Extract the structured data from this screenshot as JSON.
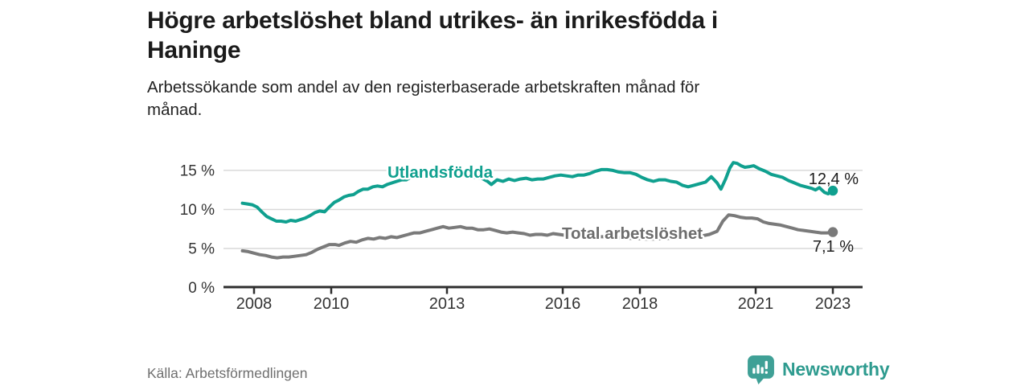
{
  "header": {
    "title_lines": [
      "Högre arbetslöshet bland utrikes- än inrikesfödda i",
      "Haninge"
    ],
    "subtitle_lines": [
      "Arbetssökande som andel av den registerbaserade arbetskraften månad för",
      "månad."
    ]
  },
  "footer": {
    "source": "Källa: Arbetsförmedlingen",
    "brand": "Newsworthy",
    "logo_icon": "speech-bubble-bar-chart-icon",
    "brand_color": "#2e9b8f",
    "logo_icon_color": "#3fa096"
  },
  "chart_data": {
    "type": "line",
    "title": "Högre arbetslöshet bland utrikes- än inrikesfödda i Haninge",
    "subtitle": "Arbetssökande som andel av den registerbaserade arbetskraften månad för månad.",
    "xlabel": "",
    "ylabel": "",
    "x_unit": "decimal year, monthly observations",
    "ylim": [
      0,
      17.5
    ],
    "xlim": [
      2007.5,
      2023.7
    ],
    "grid": "horizontal",
    "legend": "inline-series-labels",
    "axis_color": "#2e2e2e",
    "gridline_color": "#d9d9d9",
    "tick_label_color": "#333333",
    "y_ticks": [
      {
        "value": 15,
        "label": "15 %"
      },
      {
        "value": 10,
        "label": "10 %"
      },
      {
        "value": 5,
        "label": "5 %"
      },
      {
        "value": 0,
        "label": "0 %"
      }
    ],
    "x_ticks": [
      {
        "value": 2008,
        "label": "2008"
      },
      {
        "value": 2010,
        "label": "2010"
      },
      {
        "value": 2013,
        "label": "2013"
      },
      {
        "value": 2016,
        "label": "2016"
      },
      {
        "value": 2018,
        "label": "2018"
      },
      {
        "value": 2021,
        "label": "2021"
      },
      {
        "value": 2023,
        "label": "2023"
      }
    ],
    "series": [
      {
        "id": "utlandsfodda",
        "name": "Utlandsfödda",
        "color": "#10a08f",
        "end_label": "12,4 %",
        "end_value": 12.4,
        "points": [
          [
            2007.7,
            10.8
          ],
          [
            2007.83,
            10.7
          ],
          [
            2007.95,
            10.6
          ],
          [
            2008.08,
            10.3
          ],
          [
            2008.2,
            9.7
          ],
          [
            2008.33,
            9.1
          ],
          [
            2008.45,
            8.8
          ],
          [
            2008.58,
            8.5
          ],
          [
            2008.7,
            8.5
          ],
          [
            2008.83,
            8.4
          ],
          [
            2008.95,
            8.6
          ],
          [
            2009.08,
            8.5
          ],
          [
            2009.2,
            8.7
          ],
          [
            2009.33,
            8.9
          ],
          [
            2009.45,
            9.2
          ],
          [
            2009.58,
            9.6
          ],
          [
            2009.7,
            9.8
          ],
          [
            2009.83,
            9.7
          ],
          [
            2009.95,
            10.3
          ],
          [
            2010.08,
            10.9
          ],
          [
            2010.2,
            11.2
          ],
          [
            2010.33,
            11.6
          ],
          [
            2010.45,
            11.8
          ],
          [
            2010.58,
            11.9
          ],
          [
            2010.7,
            12.3
          ],
          [
            2010.83,
            12.6
          ],
          [
            2010.95,
            12.6
          ],
          [
            2011.08,
            12.9
          ],
          [
            2011.2,
            13.0
          ],
          [
            2011.33,
            12.9
          ],
          [
            2011.45,
            13.2
          ],
          [
            2011.58,
            13.4
          ],
          [
            2011.7,
            13.6
          ],
          [
            2011.83,
            13.8
          ],
          [
            2011.95,
            13.8
          ],
          [
            2012.08,
            14.2
          ],
          [
            2012.2,
            14.3
          ],
          [
            2012.33,
            14.3
          ],
          [
            2012.45,
            14.5
          ],
          [
            2012.58,
            14.4
          ],
          [
            2012.7,
            14.6
          ],
          [
            2012.83,
            14.5
          ],
          [
            2012.95,
            14.6
          ],
          [
            2013.1,
            14.4
          ],
          [
            2013.3,
            14.3
          ],
          [
            2013.5,
            14.3
          ],
          [
            2013.7,
            14.1
          ],
          [
            2013.9,
            14.0
          ],
          [
            2014.05,
            13.6
          ],
          [
            2014.15,
            13.2
          ],
          [
            2014.3,
            13.8
          ],
          [
            2014.45,
            13.6
          ],
          [
            2014.6,
            13.9
          ],
          [
            2014.75,
            13.7
          ],
          [
            2014.9,
            13.9
          ],
          [
            2015.05,
            14.0
          ],
          [
            2015.2,
            13.8
          ],
          [
            2015.35,
            13.9
          ],
          [
            2015.5,
            13.9
          ],
          [
            2015.65,
            14.1
          ],
          [
            2015.8,
            14.3
          ],
          [
            2015.95,
            14.4
          ],
          [
            2016.1,
            14.3
          ],
          [
            2016.25,
            14.2
          ],
          [
            2016.4,
            14.4
          ],
          [
            2016.55,
            14.4
          ],
          [
            2016.7,
            14.6
          ],
          [
            2016.85,
            14.9
          ],
          [
            2017.0,
            15.1
          ],
          [
            2017.15,
            15.1
          ],
          [
            2017.3,
            15.0
          ],
          [
            2017.45,
            14.8
          ],
          [
            2017.6,
            14.7
          ],
          [
            2017.75,
            14.7
          ],
          [
            2017.9,
            14.5
          ],
          [
            2018.05,
            14.1
          ],
          [
            2018.2,
            13.8
          ],
          [
            2018.35,
            13.6
          ],
          [
            2018.5,
            13.8
          ],
          [
            2018.65,
            13.8
          ],
          [
            2018.8,
            13.6
          ],
          [
            2018.95,
            13.5
          ],
          [
            2019.1,
            13.1
          ],
          [
            2019.25,
            12.9
          ],
          [
            2019.4,
            13.1
          ],
          [
            2019.55,
            13.3
          ],
          [
            2019.7,
            13.5
          ],
          [
            2019.85,
            14.2
          ],
          [
            2020.0,
            13.4
          ],
          [
            2020.1,
            12.6
          ],
          [
            2020.22,
            13.9
          ],
          [
            2020.33,
            15.3
          ],
          [
            2020.42,
            16.0
          ],
          [
            2020.52,
            15.9
          ],
          [
            2020.62,
            15.6
          ],
          [
            2020.72,
            15.4
          ],
          [
            2020.85,
            15.5
          ],
          [
            2020.95,
            15.6
          ],
          [
            2021.1,
            15.2
          ],
          [
            2021.25,
            14.9
          ],
          [
            2021.4,
            14.5
          ],
          [
            2021.55,
            14.3
          ],
          [
            2021.7,
            14.1
          ],
          [
            2021.85,
            13.7
          ],
          [
            2022.0,
            13.4
          ],
          [
            2022.15,
            13.1
          ],
          [
            2022.3,
            12.9
          ],
          [
            2022.45,
            12.7
          ],
          [
            2022.55,
            12.5
          ],
          [
            2022.65,
            12.8
          ],
          [
            2022.78,
            12.2
          ],
          [
            2022.88,
            12.0
          ],
          [
            2023.0,
            12.4
          ]
        ]
      },
      {
        "id": "total",
        "name": "Total arbetslöshet",
        "color": "#7a7a7a",
        "label_color": "#6d6d6d",
        "end_label": "7,1 %",
        "end_value": 7.1,
        "points": [
          [
            2007.7,
            4.7
          ],
          [
            2007.85,
            4.6
          ],
          [
            2008.0,
            4.4
          ],
          [
            2008.15,
            4.2
          ],
          [
            2008.3,
            4.1
          ],
          [
            2008.45,
            3.9
          ],
          [
            2008.6,
            3.8
          ],
          [
            2008.75,
            3.9
          ],
          [
            2008.9,
            3.9
          ],
          [
            2009.05,
            4.0
          ],
          [
            2009.2,
            4.1
          ],
          [
            2009.35,
            4.2
          ],
          [
            2009.5,
            4.5
          ],
          [
            2009.65,
            4.9
          ],
          [
            2009.8,
            5.2
          ],
          [
            2009.95,
            5.5
          ],
          [
            2010.1,
            5.5
          ],
          [
            2010.2,
            5.4
          ],
          [
            2010.35,
            5.7
          ],
          [
            2010.5,
            5.9
          ],
          [
            2010.65,
            5.8
          ],
          [
            2010.8,
            6.1
          ],
          [
            2010.95,
            6.3
          ],
          [
            2011.1,
            6.2
          ],
          [
            2011.25,
            6.4
          ],
          [
            2011.4,
            6.3
          ],
          [
            2011.55,
            6.5
          ],
          [
            2011.7,
            6.4
          ],
          [
            2011.85,
            6.6
          ],
          [
            2012.0,
            6.8
          ],
          [
            2012.15,
            7.0
          ],
          [
            2012.3,
            7.0
          ],
          [
            2012.45,
            7.2
          ],
          [
            2012.6,
            7.4
          ],
          [
            2012.75,
            7.6
          ],
          [
            2012.9,
            7.8
          ],
          [
            2013.05,
            7.6
          ],
          [
            2013.2,
            7.7
          ],
          [
            2013.35,
            7.8
          ],
          [
            2013.5,
            7.6
          ],
          [
            2013.65,
            7.6
          ],
          [
            2013.8,
            7.4
          ],
          [
            2013.95,
            7.4
          ],
          [
            2014.1,
            7.5
          ],
          [
            2014.25,
            7.3
          ],
          [
            2014.4,
            7.1
          ],
          [
            2014.55,
            7.0
          ],
          [
            2014.7,
            7.1
          ],
          [
            2014.85,
            7.0
          ],
          [
            2015.0,
            6.9
          ],
          [
            2015.15,
            6.7
          ],
          [
            2015.3,
            6.8
          ],
          [
            2015.45,
            6.8
          ],
          [
            2015.6,
            6.7
          ],
          [
            2015.75,
            6.9
          ],
          [
            2015.9,
            6.8
          ],
          [
            2016.05,
            6.7
          ],
          [
            2016.25,
            6.8
          ],
          [
            2016.45,
            6.7
          ],
          [
            2016.65,
            6.6
          ],
          [
            2016.9,
            6.5
          ],
          [
            2017.15,
            6.5
          ],
          [
            2017.4,
            6.4
          ],
          [
            2017.65,
            6.3
          ],
          [
            2017.9,
            6.3
          ],
          [
            2018.15,
            6.2
          ],
          [
            2018.4,
            6.2
          ],
          [
            2018.65,
            6.3
          ],
          [
            2018.9,
            6.3
          ],
          [
            2019.15,
            6.4
          ],
          [
            2019.4,
            6.5
          ],
          [
            2019.6,
            6.6
          ],
          [
            2019.8,
            6.8
          ],
          [
            2020.0,
            7.2
          ],
          [
            2020.15,
            8.5
          ],
          [
            2020.3,
            9.3
          ],
          [
            2020.45,
            9.2
          ],
          [
            2020.6,
            9.0
          ],
          [
            2020.75,
            8.9
          ],
          [
            2020.9,
            8.9
          ],
          [
            2021.05,
            8.8
          ],
          [
            2021.2,
            8.4
          ],
          [
            2021.35,
            8.2
          ],
          [
            2021.5,
            8.1
          ],
          [
            2021.65,
            8.0
          ],
          [
            2021.8,
            7.8
          ],
          [
            2021.95,
            7.6
          ],
          [
            2022.1,
            7.4
          ],
          [
            2022.25,
            7.3
          ],
          [
            2022.4,
            7.2
          ],
          [
            2022.55,
            7.1
          ],
          [
            2022.7,
            7.0
          ],
          [
            2022.85,
            7.0
          ],
          [
            2023.0,
            7.1
          ]
        ]
      }
    ]
  }
}
